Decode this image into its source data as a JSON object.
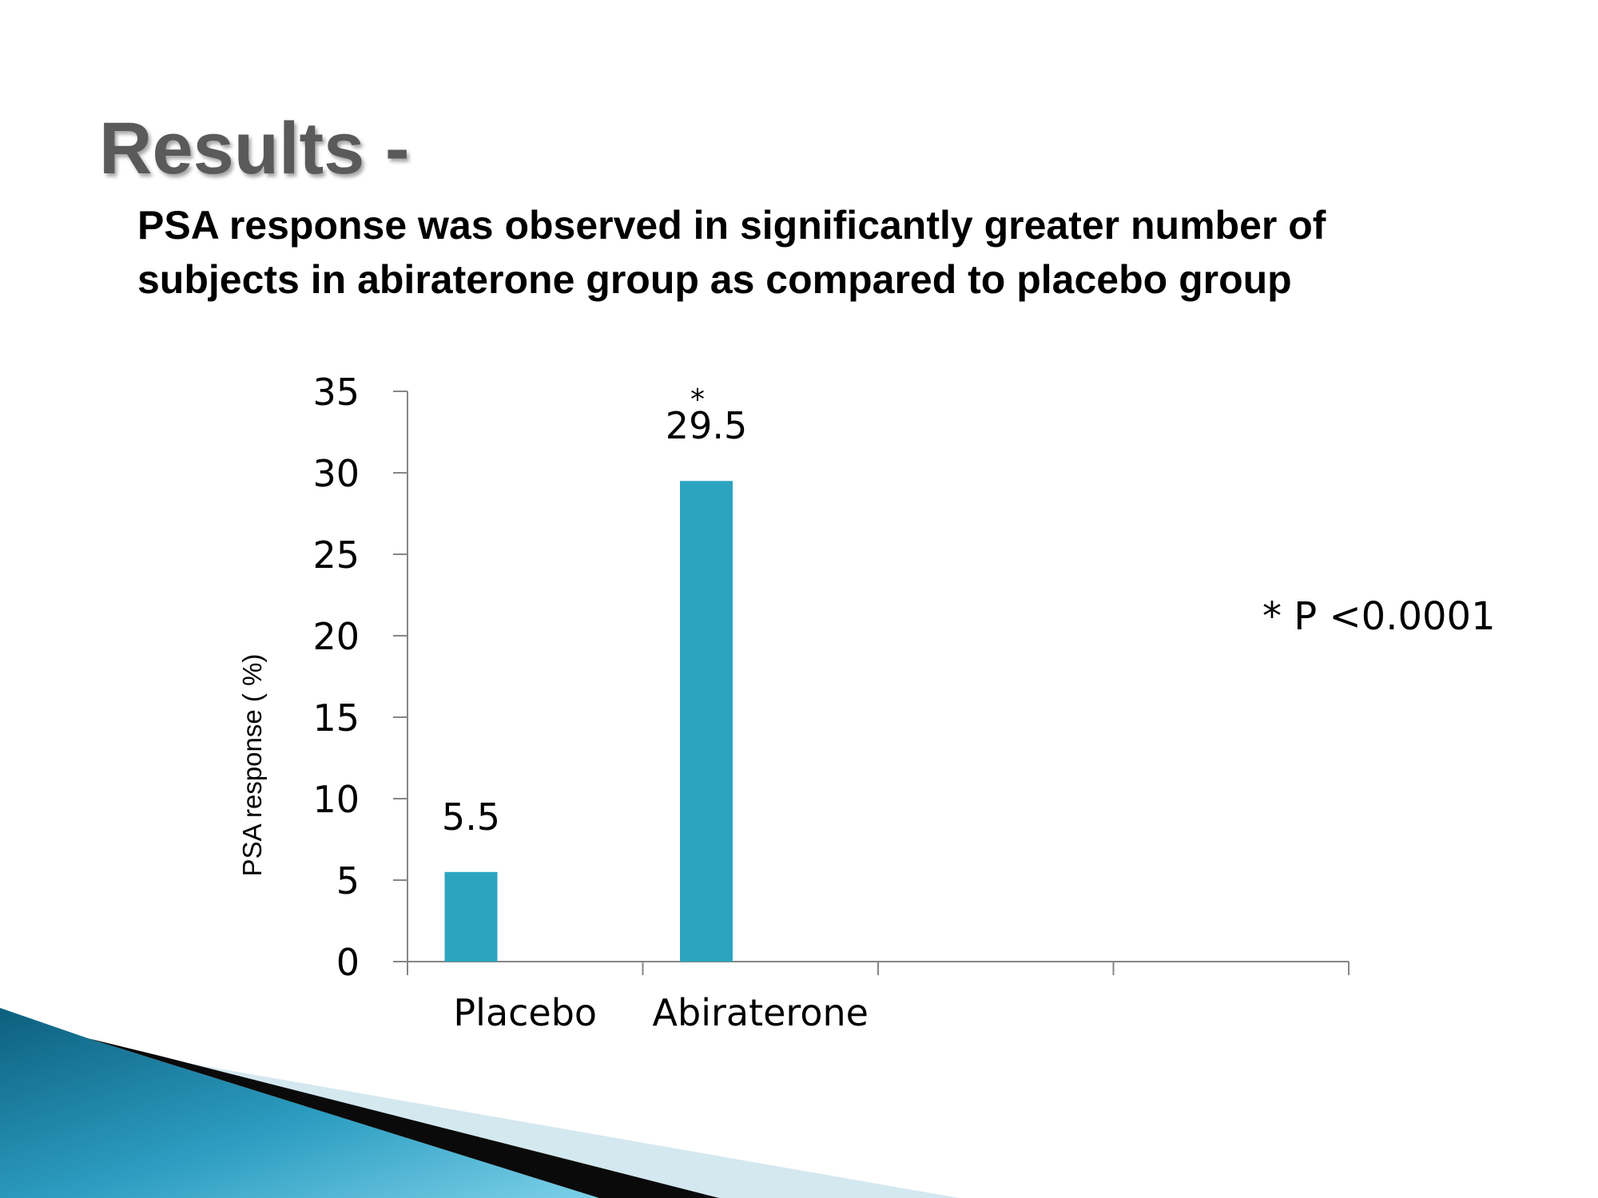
{
  "slide": {
    "title": "Results -",
    "subtitle": "PSA response was observed in significantly greater number of subjects in abiraterone group as compared to placebo group"
  },
  "chart_data": {
    "type": "bar",
    "categories": [
      "Placebo",
      "Abiraterone"
    ],
    "values": [
      5.5,
      29.5
    ],
    "data_labels": [
      "5.5",
      "29.5"
    ],
    "significance_marks": [
      "",
      "*"
    ],
    "ylabel": "PSA response ( %)",
    "xlabel": "",
    "ylim": [
      0,
      35
    ],
    "yticks": [
      0,
      5,
      10,
      15,
      20,
      25,
      30,
      35
    ],
    "x_slots": 4,
    "grid": false,
    "legend": "none",
    "annotation": "* P <0.0001",
    "bar_color": "#2ca4c0",
    "axis_color": "#868686"
  }
}
